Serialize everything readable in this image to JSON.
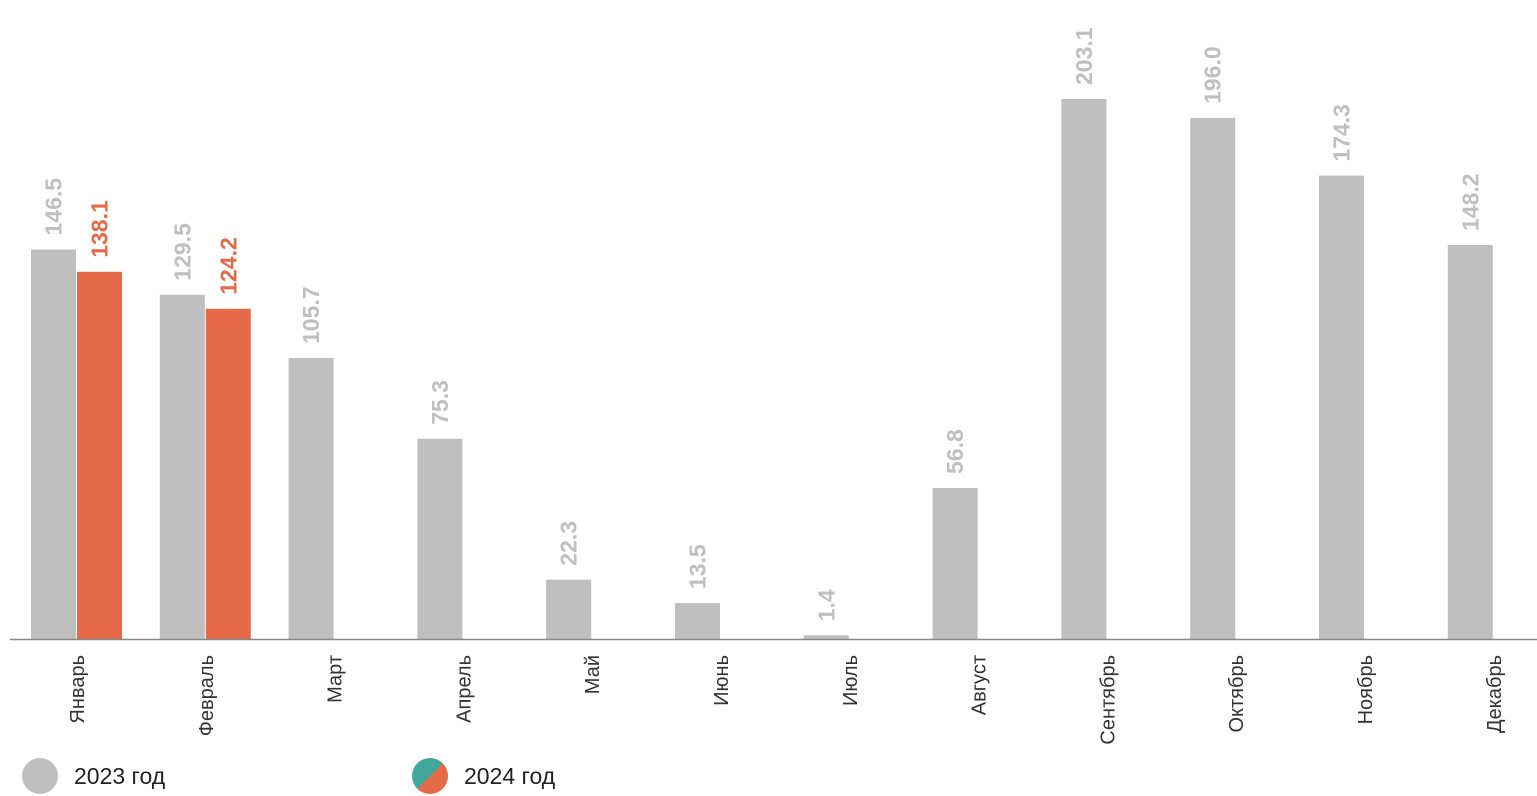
{
  "chart_data": {
    "type": "bar",
    "categories": [
      "Январь",
      "Февраль",
      "Март",
      "Апрель",
      "Май",
      "Июнь",
      "Июль",
      "Август",
      "Сентябрь",
      "Октябрь",
      "Ноябрь",
      "Декабрь"
    ],
    "series": [
      {
        "name": "2023 год",
        "color": "#bfbfbf",
        "values": [
          146.5,
          129.5,
          105.7,
          75.3,
          22.3,
          13.5,
          1.4,
          56.8,
          203.1,
          196.0,
          174.3,
          148.2
        ],
        "labels": [
          "146.5",
          "129.5",
          "105.7",
          "75.3",
          "22.3",
          "13.5",
          "1.4",
          "56.8",
          "203.1",
          "196.0",
          "174.3",
          "148.2"
        ]
      },
      {
        "name": "2024 год",
        "color": "#e46a48",
        "values": [
          138.1,
          124.2,
          null,
          null,
          null,
          null,
          null,
          null,
          null,
          null,
          null,
          null
        ],
        "labels": [
          "138.1",
          "124.2",
          null,
          null,
          null,
          null,
          null,
          null,
          null,
          null,
          null,
          null
        ]
      }
    ],
    "ylim": [
      0,
      203.1
    ],
    "grid": false,
    "legend_position": "bottom-left"
  },
  "legend": {
    "items": [
      {
        "label": "2023 год",
        "color": "#bfbfbf",
        "icon": "gray-circle-icon"
      },
      {
        "label": "2024 год",
        "color": "#e46a48",
        "accent": "#3fa89a",
        "icon": "orange-teal-split-circle-icon"
      }
    ]
  }
}
